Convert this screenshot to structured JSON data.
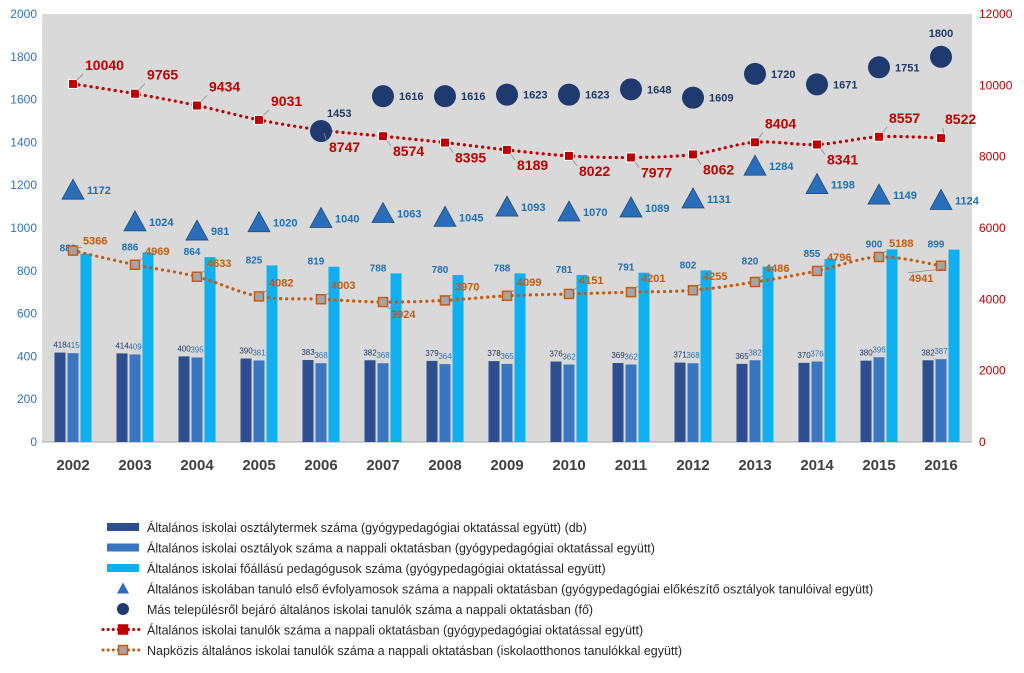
{
  "chart_data": {
    "type": "bar",
    "categories": [
      "2002",
      "2003",
      "2004",
      "2005",
      "2006",
      "2007",
      "2008",
      "2009",
      "2010",
      "2011",
      "2012",
      "2013",
      "2014",
      "2015",
      "2016"
    ],
    "y_left": {
      "min": 0,
      "max": 2000,
      "ticks": [
        "0",
        "200",
        "400",
        "600",
        "800",
        "1000",
        "1200",
        "1400",
        "1600",
        "1800",
        "2000"
      ]
    },
    "y_right": {
      "min": 0,
      "max": 12000,
      "ticks": [
        "0",
        "2000",
        "4000",
        "6000",
        "8000",
        "10000",
        "12000"
      ]
    },
    "series": [
      {
        "name": "Általános iskolai osztálytermek száma (gyógypedagógiai oktatással együtt) (db)",
        "type": "bar",
        "axis": "left",
        "color": "#2F4E8F",
        "values": [
          418,
          414,
          400,
          390,
          383,
          382,
          379,
          378,
          376,
          369,
          371,
          365,
          370,
          380,
          382
        ]
      },
      {
        "name": "Általános iskolai osztályok száma a nappali oktatásban (gyógypedagógiai oktatással együtt)",
        "type": "bar",
        "axis": "left",
        "color": "#3A76C0",
        "values": [
          415,
          409,
          395,
          381,
          368,
          368,
          364,
          365,
          362,
          362,
          368,
          382,
          376,
          396,
          387
        ]
      },
      {
        "name": "Általános iskolai főállású pedagógusok száma (gyógypedagógiai oktatással együtt)",
        "type": "bar",
        "axis": "left",
        "color": "#0FB0F0",
        "values": [
          880,
          886,
          864,
          825,
          819,
          788,
          780,
          788,
          781,
          791,
          802,
          820,
          855,
          900,
          899
        ]
      },
      {
        "name": "Általános iskolában tanuló első évfolyamosok száma a nappali oktatásban (gyógypedagógiai előkészítő osztályok tanulóival együtt)",
        "type": "scatter",
        "marker": "triangle",
        "axis": "left",
        "color": "#2A6EBB",
        "values": [
          1172,
          1024,
          981,
          1020,
          1040,
          1063,
          1045,
          1093,
          1070,
          1089,
          1131,
          1284,
          1198,
          1149,
          1124
        ]
      },
      {
        "name": "Más településről bejáró általános iskolai tanulók száma a nappali oktatásban (fő)",
        "type": "scatter",
        "marker": "circle",
        "axis": "left",
        "color": "#1F3A6E",
        "values": [
          null,
          null,
          null,
          null,
          1453,
          1616,
          1616,
          1623,
          1623,
          1648,
          1609,
          1720,
          1671,
          1751,
          1800
        ]
      },
      {
        "name": "Általános iskolai tanulók száma a nappali oktatásban (gyógypedagógiai oktatással együtt)",
        "type": "line",
        "style": "dotted",
        "marker": "square",
        "axis": "right",
        "color": "#C00000",
        "values": [
          10040,
          9765,
          9434,
          9031,
          8747,
          8574,
          8395,
          8189,
          8022,
          7977,
          8062,
          8404,
          8341,
          8557,
          8522
        ]
      },
      {
        "name": "Napközis általános iskolai tanulók száma a nappali oktatásban (iskolaotthonos tanulókkal együtt)",
        "type": "line",
        "style": "dotted",
        "marker": "square",
        "axis": "right",
        "color": "#C55A11",
        "values": [
          5366,
          4969,
          4633,
          4082,
          4003,
          3924,
          3970,
          4099,
          4151,
          4201,
          4255,
          4486,
          4796,
          5188,
          4941
        ]
      }
    ],
    "legend": "bottom",
    "grid": false
  }
}
